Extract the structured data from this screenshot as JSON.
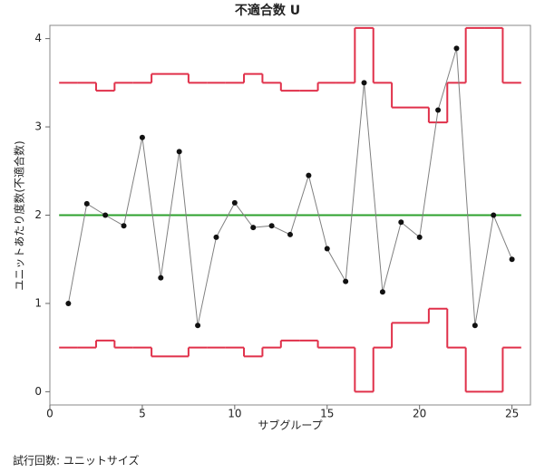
{
  "chart_data": {
    "type": "line",
    "title": "不適合数  U",
    "x_label": "サブグループ",
    "y_label": "ユニットあたり度数(不適合数)",
    "footnote": "試行回数: ユニットサイズ",
    "x": [
      1,
      2,
      3,
      4,
      5,
      6,
      7,
      8,
      9,
      10,
      11,
      12,
      13,
      14,
      15,
      16,
      17,
      18,
      19,
      20,
      21,
      22,
      23,
      24,
      25
    ],
    "values": [
      1.0,
      2.13,
      2.0,
      1.88,
      2.88,
      1.29,
      2.72,
      0.75,
      1.75,
      2.14,
      1.86,
      1.88,
      1.78,
      2.45,
      1.62,
      1.25,
      3.5,
      1.13,
      1.92,
      1.75,
      3.19,
      3.89,
      0.75,
      2.0,
      1.5
    ],
    "color": "#808080",
    "marker_color": "#111111",
    "center": 2.0,
    "center_color": "#2ca02c",
    "limits": [
      {
        "color": "#e0304a",
        "values": [
          3.5,
          3.5,
          3.41,
          3.5,
          3.5,
          3.6,
          3.6,
          3.5,
          3.5,
          3.5,
          3.6,
          3.5,
          3.41,
          3.41,
          3.5,
          3.5,
          4.12,
          3.5,
          3.22,
          3.22,
          3.05,
          3.5,
          4.12,
          4.12,
          3.5
        ]
      },
      {
        "color": "#e0304a",
        "values": [
          0.5,
          0.5,
          0.58,
          0.5,
          0.5,
          0.4,
          0.4,
          0.5,
          0.5,
          0.5,
          0.4,
          0.5,
          0.58,
          0.58,
          0.5,
          0.5,
          0,
          0.5,
          0.78,
          0.78,
          0.94,
          0.5,
          0,
          0,
          0.5
        ]
      }
    ],
    "xlim": [
      0,
      26
    ],
    "ylim": [
      -0.15,
      4.15
    ],
    "xticks": [
      0,
      5,
      10,
      15,
      20,
      25
    ],
    "yticks": [
      0,
      1,
      2,
      3,
      4
    ],
    "grid": false
  }
}
